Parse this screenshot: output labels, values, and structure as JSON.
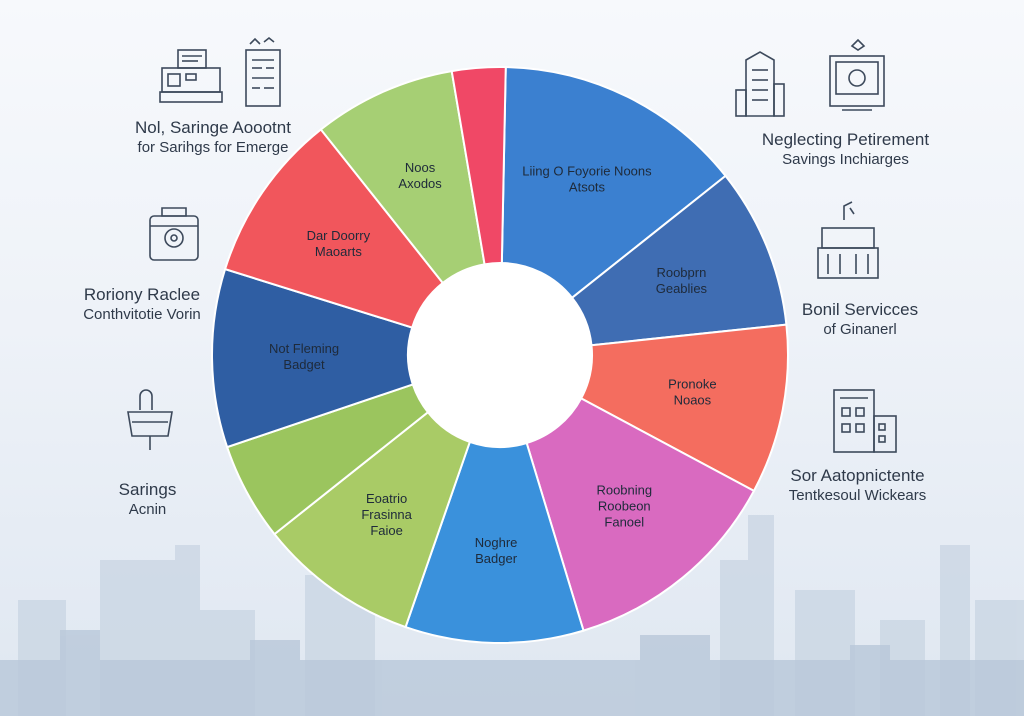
{
  "chart_data": {
    "type": "pie",
    "variant": "donut",
    "title": "",
    "slices": [
      {
        "label": "Liing O Foyorie Noons\nAtsots",
        "value": 14.0,
        "color": "#3b80d0"
      },
      {
        "label": "Roobprn\nGeablies",
        "value": 9.0,
        "color": "#3f6db3"
      },
      {
        "label": "Pronoke\nNoaos",
        "value": 9.5,
        "color": "#f46d5f"
      },
      {
        "label": "Roobning\nRoobeon\nFanoel",
        "value": 12.5,
        "color": "#d96ac0"
      },
      {
        "label": "Noghre\nBadger",
        "value": 10.0,
        "color": "#3a91dc"
      },
      {
        "label": "Eoatrio\nFrasinna\nFaioe",
        "value": 9.0,
        "color": "#a9cb66"
      },
      {
        "label": "",
        "value": 5.5,
        "color": "#9bc55e"
      },
      {
        "label": "Not Fleming\nBadget",
        "value": 10.0,
        "color": "#2f5ea3"
      },
      {
        "label": "Dar Doorry\nMaoarts",
        "value": 9.5,
        "color": "#f1565c"
      },
      {
        "label": "Noos\nAxodos",
        "value": 8.0,
        "color": "#a6cf74"
      },
      {
        "label": "",
        "value": 3.0,
        "color": "#f04866"
      }
    ]
  },
  "annotations": {
    "top_left": {
      "line1": "Nol, Saringe Aoootnt",
      "line2": "for Sarihgs for Emerge"
    },
    "mid_left": {
      "line1": "Roriony Raclee",
      "line2": "Conthvitotie Vorin"
    },
    "low_left": {
      "line1": "Sarings",
      "line2": "Acnin"
    },
    "top_right": {
      "line1": "Neglecting Petirement",
      "line2": "Savings Inchiarges"
    },
    "mid_right": {
      "line1": "Bonil Servicces",
      "line2": "of Ginanerl"
    },
    "low_right": {
      "line1": "Sor Aatopnictente",
      "line2": "Tentkesoul Wickears"
    }
  },
  "icons": [
    "cash-register-icon",
    "document-icon",
    "safe-icon",
    "handbag-icon",
    "office-building-icon",
    "computer-monitor-icon",
    "bank-building-icon",
    "apartment-icon"
  ]
}
